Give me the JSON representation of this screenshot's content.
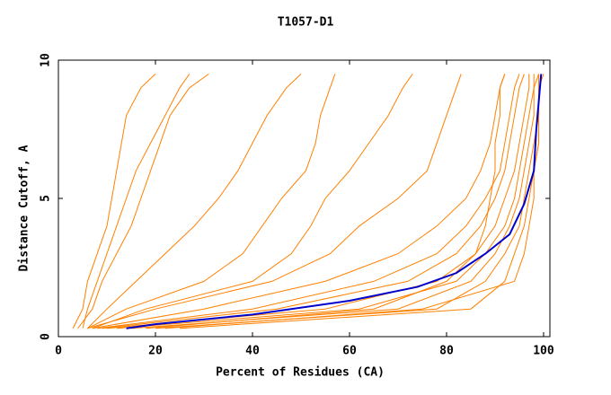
{
  "chart_data": {
    "type": "line",
    "title": "T1057-D1",
    "x_label": "Percent of Residues (CA)",
    "y_label": "Distance Cutoff, A",
    "xlim": [
      0,
      101.3
    ],
    "ylim": [
      0,
      10
    ],
    "xticks": [
      0,
      20,
      40,
      60,
      80,
      100
    ],
    "yticks": [
      0,
      5,
      10
    ],
    "grid": false,
    "series": [
      {
        "color": "#ff8000",
        "x": [
          3,
          5,
          6,
          8,
          10,
          11,
          12,
          13,
          14,
          17,
          20
        ],
        "values": [
          0.3,
          1,
          2,
          3,
          4,
          5,
          6,
          7,
          8,
          9,
          9.5
        ]
      },
      {
        "color": "#ff8000",
        "x": [
          5,
          6,
          8,
          10,
          12,
          14,
          16,
          19,
          22,
          25,
          27
        ],
        "values": [
          0.3,
          1,
          2,
          3,
          4,
          5,
          6,
          7,
          8,
          9,
          9.5
        ]
      },
      {
        "color": "#ff8000",
        "x": [
          4,
          7,
          9,
          12,
          15,
          17,
          19,
          21,
          23,
          27,
          31
        ],
        "values": [
          0.3,
          1,
          2,
          3,
          4,
          5,
          6,
          7,
          8,
          9,
          9.5
        ]
      },
      {
        "color": "#ff8000",
        "x": [
          6,
          10,
          16,
          22,
          28,
          33,
          37,
          40,
          43,
          47,
          50
        ],
        "values": [
          0.3,
          1,
          2,
          3,
          4,
          5,
          6,
          7,
          8,
          9,
          9.5
        ]
      },
      {
        "color": "#ff8000",
        "x": [
          6,
          14,
          30,
          38,
          42,
          46,
          51,
          53,
          54,
          56,
          57
        ],
        "values": [
          0.3,
          1,
          2,
          3,
          4,
          5,
          6,
          7,
          8,
          9,
          9.5
        ]
      },
      {
        "color": "#ff8000",
        "x": [
          7,
          18,
          40,
          48,
          52,
          55,
          60,
          64,
          68,
          71,
          73
        ],
        "values": [
          0.3,
          1,
          2,
          3,
          4,
          5,
          6,
          7,
          8,
          9,
          9.5
        ]
      },
      {
        "color": "#ff8000",
        "x": [
          6,
          20,
          44,
          56,
          62,
          70,
          76,
          78,
          80,
          82,
          83
        ],
        "values": [
          0.3,
          1,
          2,
          3,
          4,
          5,
          6,
          7,
          8,
          9,
          9.5
        ]
      },
      {
        "color": "#ff8000",
        "x": [
          7,
          30,
          55,
          70,
          78,
          84,
          87,
          89,
          90,
          91,
          92
        ],
        "values": [
          0.3,
          1,
          2,
          3,
          4,
          5,
          6,
          7,
          8,
          9,
          9.5
        ]
      },
      {
        "color": "#ff8000",
        "x": [
          8,
          40,
          65,
          78,
          84,
          88,
          91,
          92,
          93,
          94,
          95
        ],
        "values": [
          0.3,
          1,
          2,
          3,
          4,
          5,
          6,
          7,
          8,
          9,
          9.5
        ]
      },
      {
        "color": "#ff8000",
        "x": [
          9,
          45,
          72,
          82,
          87,
          90,
          92,
          93,
          94,
          95,
          96
        ],
        "values": [
          0.3,
          1,
          2,
          3,
          4,
          5,
          6,
          7,
          8,
          9,
          9.5
        ]
      },
      {
        "color": "#ff8000",
        "x": [
          10,
          55,
          78,
          86,
          90,
          92,
          94,
          95,
          96,
          97,
          97
        ],
        "values": [
          0.3,
          1,
          2,
          3,
          4,
          5,
          6,
          7,
          8,
          9,
          9.5
        ]
      },
      {
        "color": "#ff8000",
        "x": [
          12,
          62,
          82,
          88,
          92,
          94,
          95,
          96,
          97,
          98,
          98
        ],
        "values": [
          0.3,
          1,
          2,
          3,
          4,
          5,
          6,
          7,
          8,
          9,
          9.5
        ]
      },
      {
        "color": "#ff8000",
        "x": [
          15,
          70,
          85,
          90,
          93,
          95,
          96,
          97,
          98,
          98,
          99
        ],
        "values": [
          0.3,
          1,
          2,
          3,
          4,
          5,
          6,
          7,
          8,
          9,
          9.5
        ]
      },
      {
        "color": "#ff8000",
        "x": [
          20,
          78,
          88,
          92,
          95,
          96,
          97,
          98,
          99,
          99,
          99
        ],
        "values": [
          0.3,
          1,
          2,
          3,
          4,
          5,
          6,
          7,
          8,
          9,
          9.5
        ]
      },
      {
        "color": "#ff8000",
        "x": [
          25,
          85,
          92,
          94,
          96,
          97,
          98,
          99,
          99,
          99,
          100
        ],
        "values": [
          0.3,
          1,
          2,
          3,
          4,
          5,
          6,
          7,
          8,
          9,
          9.5
        ]
      },
      {
        "color": "#ff8000",
        "x": [
          18,
          65,
          80,
          86,
          88,
          89,
          90,
          90,
          91,
          91,
          92
        ],
        "values": [
          0.3,
          1,
          2,
          3,
          4,
          5,
          6,
          7,
          8,
          9,
          9.5
        ]
      },
      {
        "color": "#ff8000",
        "x": [
          22,
          75,
          94,
          96,
          97,
          98,
          98,
          99,
          99,
          99,
          99
        ],
        "values": [
          0.3,
          1,
          2,
          3,
          4,
          5,
          6,
          7,
          8,
          9,
          9.5
        ]
      },
      {
        "color": "#0000cc",
        "x": [
          14,
          20,
          40,
          60,
          74,
          82,
          88,
          93,
          96,
          98,
          98.5,
          99,
          99.5
        ],
        "values": [
          0.3,
          0.45,
          0.8,
          1.3,
          1.8,
          2.3,
          3,
          3.7,
          4.8,
          6,
          7.5,
          8.5,
          9.5
        ]
      }
    ]
  }
}
